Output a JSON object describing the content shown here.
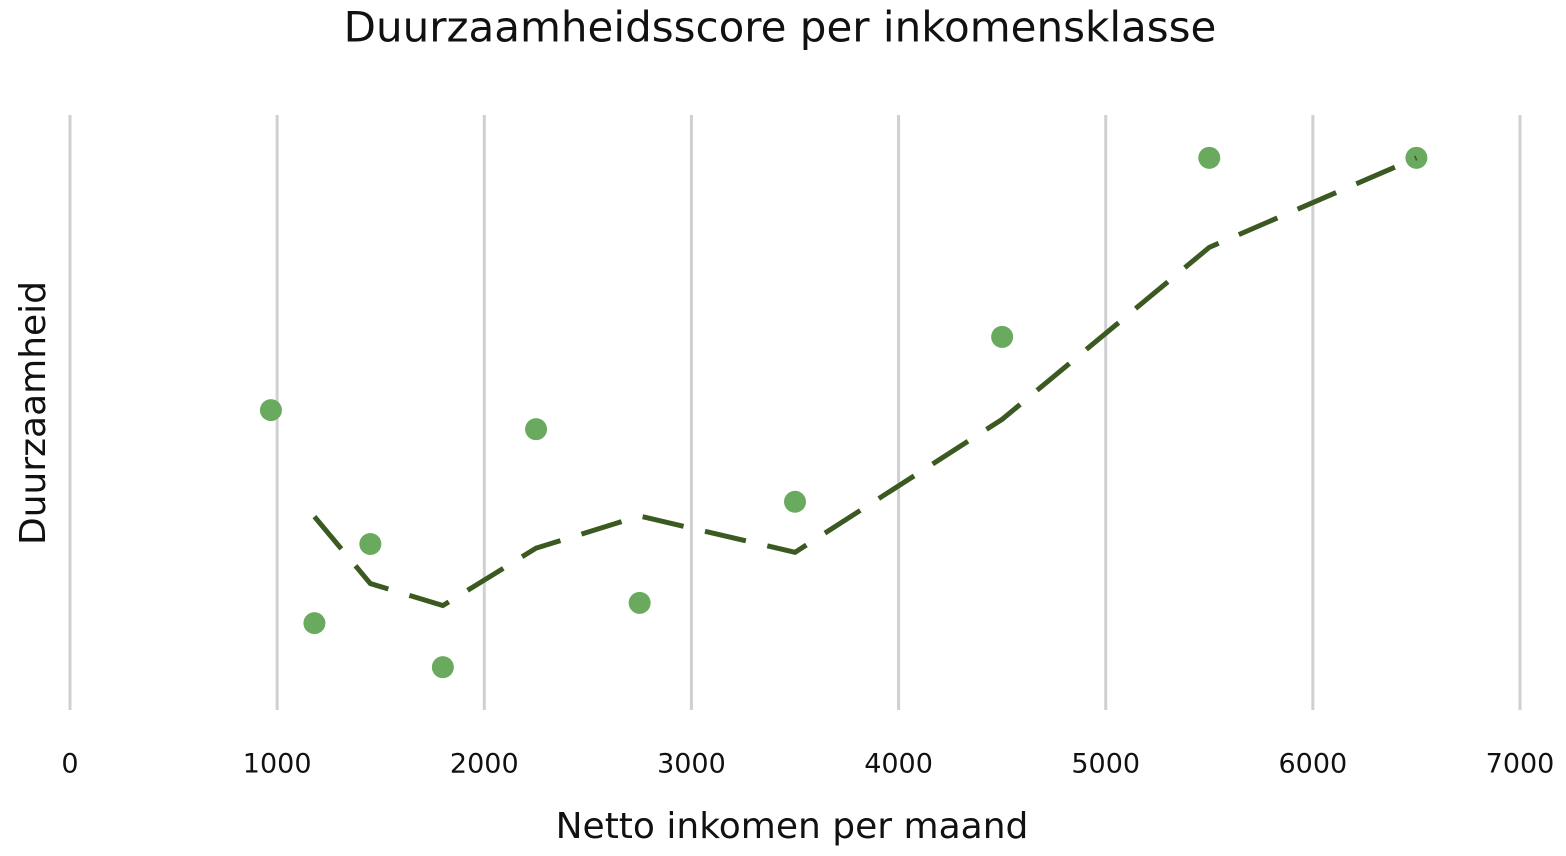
{
  "chart_data": {
    "type": "scatter",
    "title": "Duurzaamheidsscore per inkomensklasse",
    "xlabel": "Netto inkomen per maand",
    "ylabel": "Duurzaamheid",
    "series": [
      {
        "type": "scatter",
        "color": "#6aaa5e",
        "x": [
          970,
          1180,
          1450,
          1800,
          2250,
          2750,
          3500,
          4500,
          5500,
          6500
        ],
        "values": [
          5.04,
          1.46,
          2.79,
          0.72,
          4.72,
          1.8,
          3.5,
          6.27,
          9.28,
          9.28
        ]
      },
      {
        "type": "line",
        "color": "#3b5a22",
        "dashed": true,
        "x": [
          1180,
          1450,
          1800,
          2250,
          2750,
          3500,
          4500,
          5500,
          6500
        ],
        "values": [
          3.25,
          2.125,
          1.755,
          2.72,
          3.26,
          2.65,
          4.885,
          7.775,
          9.28
        ]
      }
    ],
    "xlim": [
      0,
      7000
    ],
    "xticks": [
      0,
      1000,
      2000,
      3000,
      4000,
      5000,
      6000,
      7000
    ],
    "ylim": [
      0,
      10
    ],
    "grid": true
  }
}
